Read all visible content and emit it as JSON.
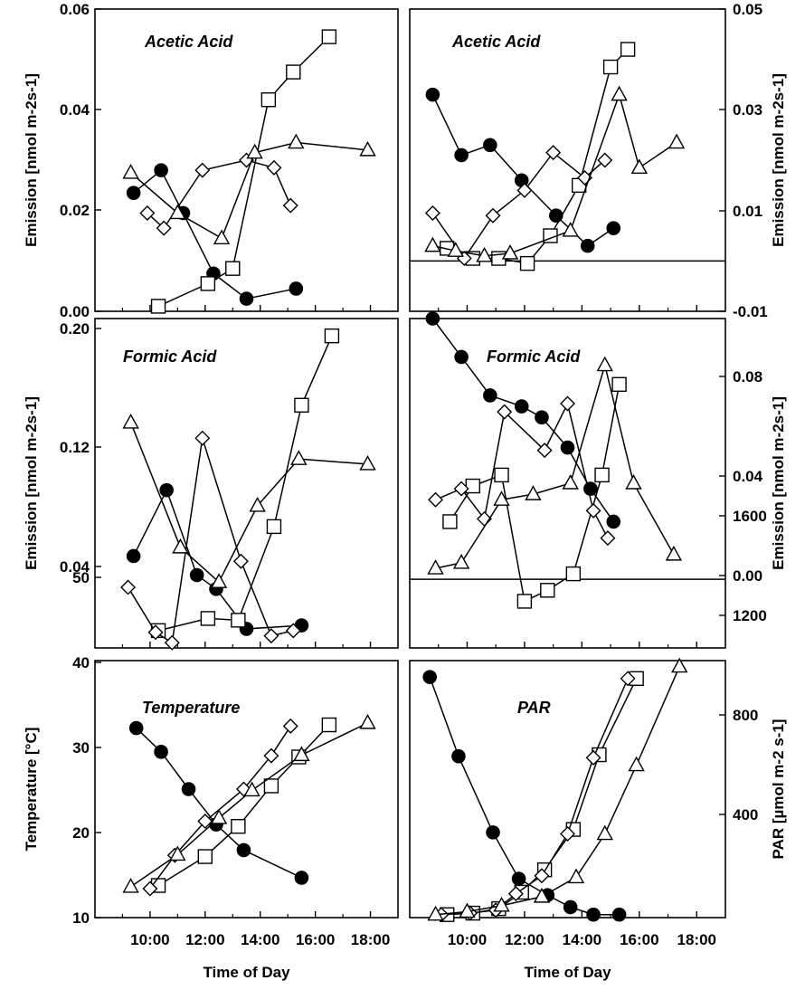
{
  "chart_data": [
    {
      "type": "line",
      "title": "Acetic Acid",
      "ylabel": "Emission [nmol m-2s-1]",
      "y_axis_side": "left",
      "ylim": [
        0,
        0.06
      ],
      "yticks": [
        "0.00",
        "0.02",
        "0.04",
        "0.06"
      ],
      "xlim": [
        8,
        19
      ],
      "series": [
        {
          "marker": "circle-filled",
          "x": [
            9.4,
            10.4,
            11.2,
            12.3,
            13.5,
            15.3
          ],
          "y": [
            0.0235,
            0.028,
            0.0195,
            0.0075,
            0.0025,
            0.0045
          ]
        },
        {
          "marker": "square-open",
          "x": [
            10.3,
            12.1,
            13.0,
            14.3,
            15.2,
            16.5
          ],
          "y": [
            0.001,
            0.0055,
            0.0085,
            0.042,
            0.0475,
            0.0545
          ]
        },
        {
          "marker": "diamond-open",
          "x": [
            9.9,
            10.5,
            11.9,
            13.5,
            14.5,
            15.1
          ],
          "y": [
            0.0195,
            0.0165,
            0.028,
            0.03,
            0.0285,
            0.021
          ]
        },
        {
          "marker": "triangle-open",
          "x": [
            9.3,
            11.0,
            12.6,
            13.8,
            15.3,
            17.9
          ],
          "y": [
            0.0275,
            0.0195,
            0.0145,
            0.0315,
            0.0335,
            0.032
          ]
        }
      ]
    },
    {
      "type": "line",
      "title": "Acetic Acid",
      "ylabel": "Emission [nmol m-2s-1]",
      "y_axis_side": "right",
      "ylim": [
        -0.01,
        0.05
      ],
      "yticks": [
        "-0.01",
        "0.01",
        "0.03",
        "0.05"
      ],
      "xlim": [
        8,
        19
      ],
      "series": [
        {
          "marker": "circle-filled",
          "x": [
            8.8,
            9.8,
            10.8,
            11.9,
            13.1,
            14.2,
            15.1
          ],
          "y": [
            0.033,
            0.021,
            0.023,
            0.016,
            0.009,
            0.003,
            0.0065
          ]
        },
        {
          "marker": "square-open",
          "x": [
            9.3,
            10.2,
            11.1,
            12.1,
            12.9,
            13.9,
            15.0,
            15.6
          ],
          "y": [
            0.0025,
            0.0005,
            0.0005,
            -0.0005,
            0.005,
            0.015,
            0.0385,
            0.042
          ]
        },
        {
          "marker": "diamond-open",
          "x": [
            8.8,
            9.9,
            10.9,
            12.0,
            13.0,
            14.1,
            14.8
          ],
          "y": [
            0.0095,
            0.0005,
            0.009,
            0.014,
            0.0215,
            0.0165,
            0.02
          ]
        },
        {
          "marker": "triangle-open",
          "x": [
            8.8,
            9.6,
            10.6,
            11.5,
            13.6,
            15.3,
            16.0,
            17.3
          ],
          "y": [
            0.003,
            0.002,
            0.001,
            0.0015,
            0.006,
            0.033,
            0.0185,
            0.0235
          ]
        }
      ]
    },
    {
      "type": "line",
      "title": "Formic Acid",
      "ylabel": "Emission [nmol m-2s-1]",
      "y_axis_side": "left",
      "ylim": [
        0.01,
        0.2
      ],
      "yticks": [
        "0.04",
        "0.12",
        "0.20"
      ],
      "xlim": [
        8,
        19
      ],
      "series": [
        {
          "marker": "circle-filled",
          "x": [
            9.4,
            10.6,
            11.7,
            12.4,
            13.5,
            15.5
          ],
          "y": [
            0.063,
            0.101,
            0.052,
            0.044,
            0.021,
            0.023
          ]
        },
        {
          "marker": "square-open",
          "x": [
            10.3,
            12.1,
            13.2,
            14.5,
            15.5,
            16.6
          ],
          "y": [
            0.02,
            0.027,
            0.026,
            0.08,
            0.15,
            0.19
          ]
        },
        {
          "marker": "diamond-open",
          "x": [
            9.2,
            10.2,
            10.8,
            11.9,
            13.3,
            14.4,
            15.2
          ],
          "y": [
            0.045,
            0.019,
            0.013,
            0.131,
            0.06,
            0.017,
            0.02
          ]
        },
        {
          "marker": "triangle-open",
          "x": [
            9.3,
            11.1,
            12.5,
            13.9,
            15.4,
            17.9
          ],
          "y": [
            0.14,
            0.068,
            0.048,
            0.092,
            0.119,
            0.116
          ]
        }
      ]
    },
    {
      "type": "line",
      "title": "Formic Acid",
      "ylabel": "Emission [nmol m-2s-1]",
      "y_axis_side": "right",
      "ylim": [
        -0.025,
        0.095
      ],
      "yticks": [
        "0.00",
        "0.04",
        "0.08"
      ],
      "xlim": [
        8,
        19
      ],
      "series": [
        {
          "marker": "circle-filled",
          "x": [
            8.8,
            9.8,
            10.8,
            11.9,
            12.6,
            13.5,
            14.3,
            15.1
          ],
          "y": [
            0.095,
            0.081,
            0.067,
            0.063,
            0.059,
            0.048,
            0.033,
            0.021
          ]
        },
        {
          "marker": "square-open",
          "x": [
            9.4,
            10.2,
            11.2,
            12.0,
            12.8,
            13.7,
            14.7,
            15.3
          ],
          "y": [
            0.021,
            0.034,
            0.038,
            -0.008,
            -0.004,
            0.002,
            0.038,
            0.071
          ]
        },
        {
          "marker": "diamond-open",
          "x": [
            8.9,
            9.8,
            10.6,
            11.3,
            12.7,
            13.5,
            14.4,
            14.9
          ],
          "y": [
            0.029,
            0.033,
            0.022,
            0.061,
            0.047,
            0.064,
            0.025,
            0.015
          ]
        },
        {
          "marker": "triangle-open",
          "x": [
            8.9,
            9.8,
            11.2,
            12.3,
            13.6,
            14.8,
            15.8,
            17.2
          ],
          "y": [
            0.004,
            0.006,
            0.029,
            0.031,
            0.035,
            0.078,
            0.035,
            0.009
          ]
        }
      ]
    },
    {
      "type": "line",
      "title": "Temperature",
      "ylabel": "Temperature [°C]",
      "xlabel": "Time of Day",
      "y_axis_side": "left",
      "ylim": [
        10,
        50
      ],
      "yticks": [
        "10",
        "20",
        "30",
        "40",
        "50"
      ],
      "xlim": [
        8,
        19
      ],
      "xticks": [
        "10:00",
        "12:00",
        "14:00",
        "16:00",
        "18:00"
      ],
      "series": [
        {
          "marker": "circle-filled",
          "x": [
            9.5,
            10.4,
            11.4,
            12.4,
            13.4,
            15.5
          ],
          "y": [
            39.5,
            35.8,
            30.0,
            24.5,
            20.5,
            16.2
          ]
        },
        {
          "marker": "square-open",
          "x": [
            10.3,
            12.0,
            13.2,
            14.4,
            15.4,
            16.5
          ],
          "y": [
            15.0,
            19.5,
            24.2,
            30.5,
            35.0,
            40.0
          ]
        },
        {
          "marker": "diamond-open",
          "x": [
            10.0,
            10.9,
            12.0,
            13.4,
            14.4,
            15.1
          ],
          "y": [
            14.5,
            19.7,
            25.0,
            30.0,
            35.2,
            39.8
          ]
        },
        {
          "marker": "triangle-open",
          "x": [
            9.3,
            11.0,
            12.5,
            13.7,
            15.5,
            17.9
          ],
          "y": [
            14.8,
            19.8,
            25.5,
            29.8,
            35.3,
            40.3
          ]
        }
      ]
    },
    {
      "type": "line",
      "title": "PAR",
      "ylabel": "PAR [µmol m-2 s-1]",
      "xlabel": "Time of Day",
      "y_axis_side": "right",
      "ylim": [
        0,
        1720
      ],
      "yticks": [
        "400",
        "800",
        "1200",
        "1600"
      ],
      "xlim": [
        8,
        19
      ],
      "xticks": [
        "10:00",
        "12:00",
        "14:00",
        "16:00",
        "18:00"
      ],
      "series": [
        {
          "marker": "circle-filled",
          "x": [
            8.7,
            9.7,
            10.9,
            11.8,
            12.8,
            13.6,
            14.4,
            15.3
          ],
          "y": [
            1610,
            1080,
            570,
            260,
            150,
            70,
            20,
            20
          ]
        },
        {
          "marker": "square-open",
          "x": [
            9.3,
            10.2,
            11.1,
            11.9,
            12.7,
            13.7,
            14.6,
            15.9
          ],
          "y": [
            20,
            30,
            60,
            170,
            320,
            590,
            1090,
            1600
          ]
        },
        {
          "marker": "diamond-open",
          "x": [
            9.1,
            10.1,
            11.0,
            11.7,
            12.6,
            13.5,
            14.4,
            15.6
          ],
          "y": [
            20,
            30,
            50,
            160,
            280,
            560,
            1070,
            1600
          ]
        },
        {
          "marker": "triangle-open",
          "x": [
            8.9,
            10.0,
            11.2,
            12.6,
            13.8,
            14.8,
            15.9,
            17.4
          ],
          "y": [
            20,
            40,
            80,
            140,
            270,
            560,
            1020,
            1680
          ]
        }
      ]
    }
  ],
  "ylabel_notes": {
    "left_emission_unit_exp": "-2",
    "left_emission_unit_exp2": "-1"
  }
}
